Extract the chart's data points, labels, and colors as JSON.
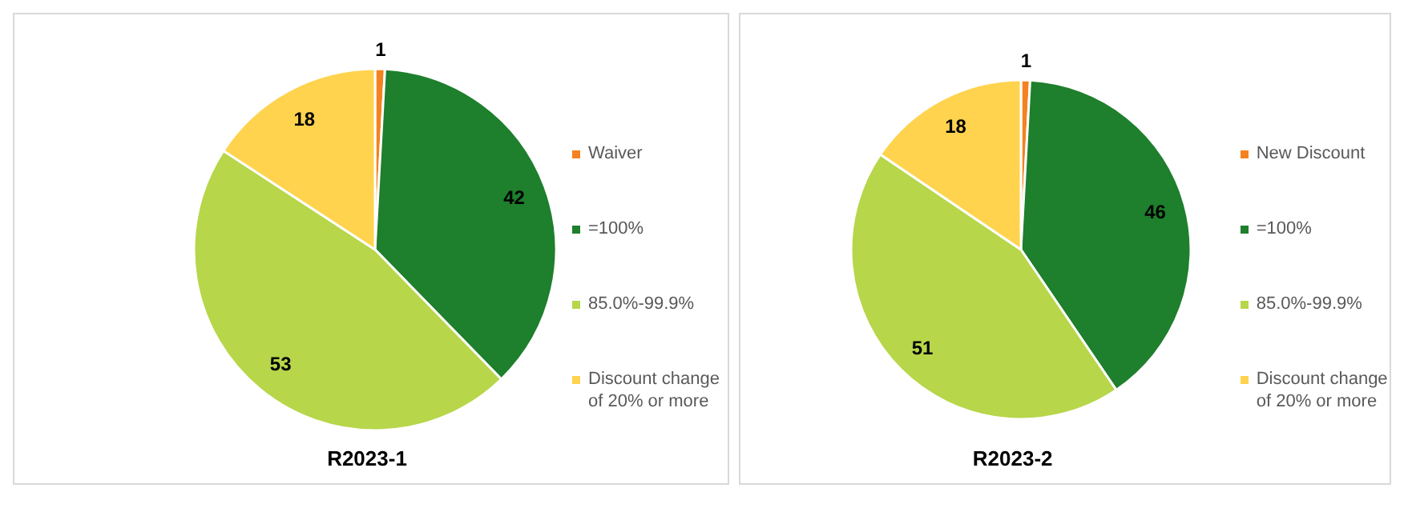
{
  "chart_data": [
    {
      "type": "pie",
      "title": "R2023-1",
      "categories": [
        "Waiver",
        "=100%",
        "85.0%-99.9%",
        "Discount change of 20% or more"
      ],
      "values": [
        1,
        42,
        53,
        18
      ],
      "colors": [
        "#f58220",
        "#1e7f2c",
        "#b7d64a",
        "#ffd34e"
      ],
      "data_labels": true,
      "legend": "right"
    },
    {
      "type": "pie",
      "title": "R2023-2",
      "categories": [
        "New Discount",
        "=100%",
        "85.0%-99.9%",
        "Discount change of 20% or more"
      ],
      "values": [
        1,
        46,
        51,
        18
      ],
      "colors": [
        "#f58220",
        "#1e7f2c",
        "#b7d64a",
        "#ffd34e"
      ],
      "data_labels": true,
      "legend": "right"
    }
  ]
}
